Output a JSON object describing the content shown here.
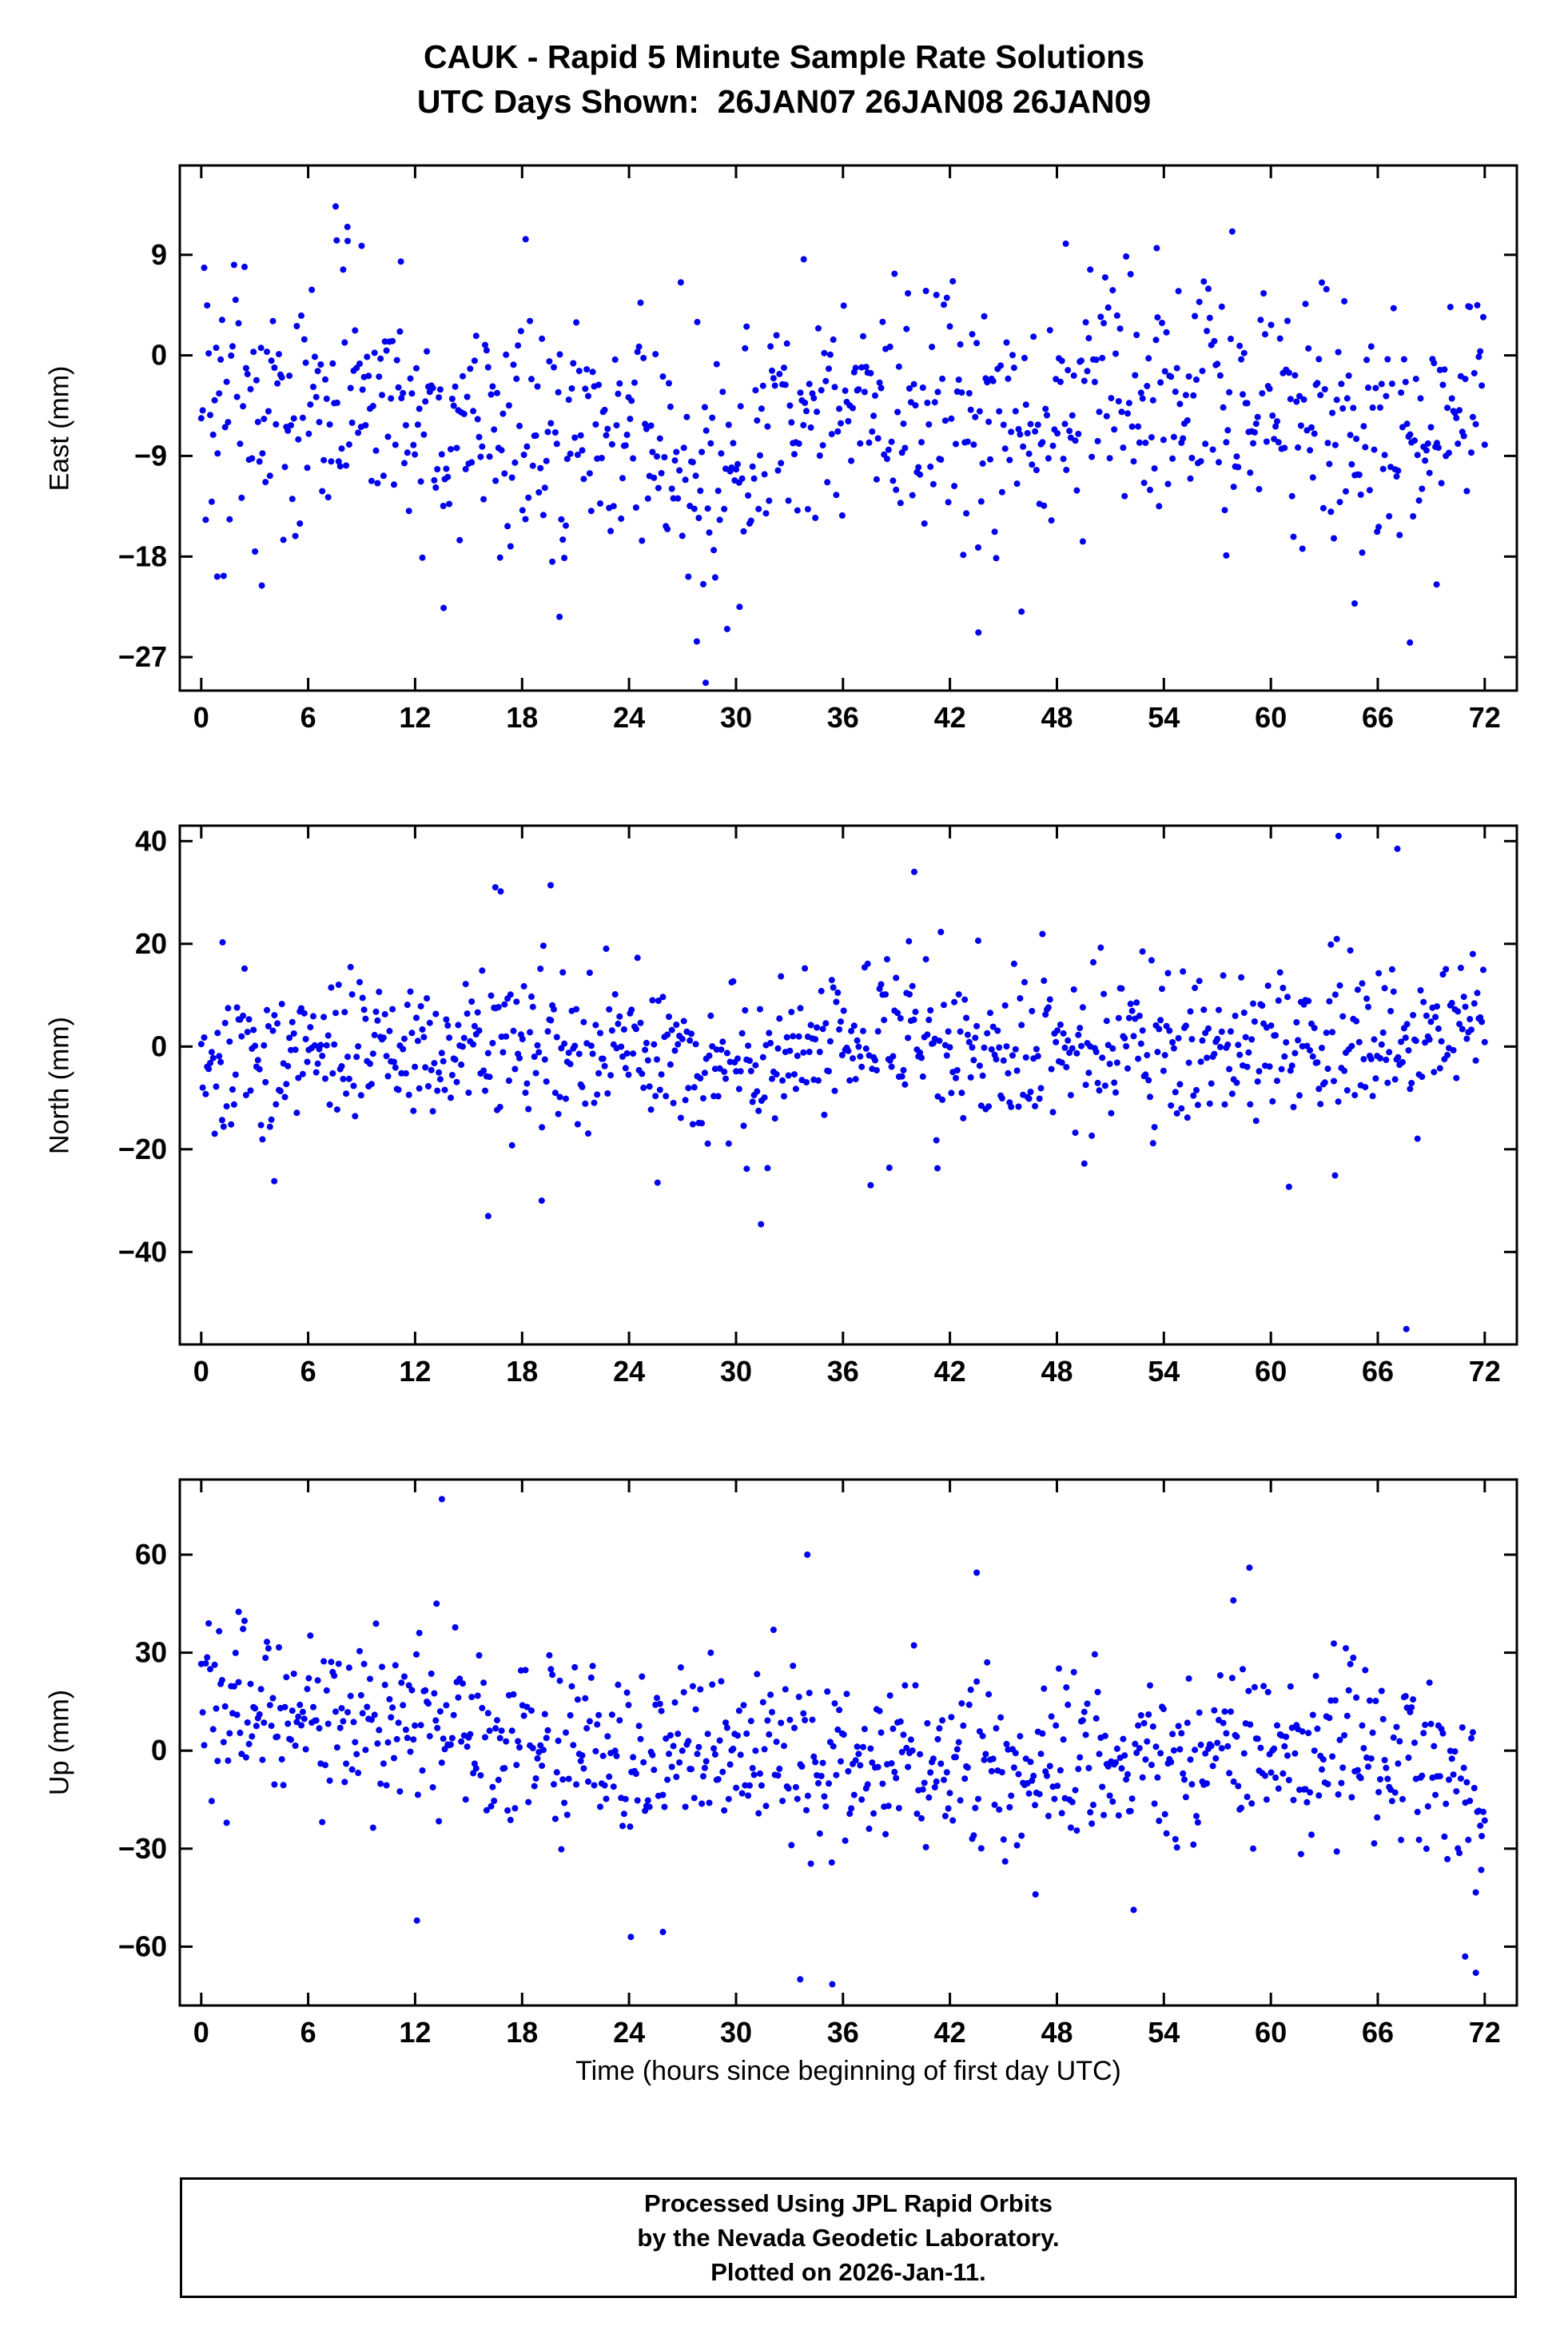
{
  "title": {
    "line1": "CAUK - Rapid 5 Minute Sample Rate Solutions",
    "line2": "UTC Days Shown:  26JAN07 26JAN08 26JAN09"
  },
  "footer": {
    "line1": "Processed Using JPL Rapid Orbits",
    "line2": "by the Nevada Geodetic Laboratory.",
    "line3": "Plotted on 2026-Jan-11."
  },
  "colors": {
    "point": "#0000ee",
    "axis": "#000000",
    "background": "#ffffff",
    "text": "#000000"
  },
  "chart_data": {
    "type": "scatter",
    "title": "CAUK - Rapid 5 Minute Sample Rate Solutions",
    "subtitle": "UTC Days Shown:  26JAN07 26JAN08 26JAN09",
    "station": "CAUK",
    "utc_days_shown": [
      "26JAN07",
      "26JAN08",
      "26JAN09"
    ],
    "sample_interval_minutes": 5,
    "x_axis": {
      "label": "Time (hours since beginning of first day UTC)",
      "min": -1.2,
      "max": 73.8,
      "ticks": [
        0,
        6,
        12,
        18,
        24,
        30,
        36,
        42,
        48,
        54,
        60,
        66,
        72
      ]
    },
    "panels": [
      {
        "name": "east",
        "ylabel": "East (mm)",
        "ylim": [
          -30,
          17
        ],
        "yticks": [
          9,
          0,
          -9,
          -18,
          -27
        ],
        "n_points": 860,
        "seed": 20070126,
        "sd": 5.3,
        "mean_anchors": [
          [
            0,
            -5
          ],
          [
            4,
            -6
          ],
          [
            8,
            -4
          ],
          [
            12,
            -6
          ],
          [
            16,
            -8
          ],
          [
            20,
            -7
          ],
          [
            24,
            -9
          ],
          [
            28,
            -12
          ],
          [
            31,
            -9
          ],
          [
            34,
            -6
          ],
          [
            38,
            -4
          ],
          [
            42,
            -5
          ],
          [
            46,
            -6
          ],
          [
            50,
            -4
          ],
          [
            54,
            -2
          ],
          [
            58,
            -4
          ],
          [
            62,
            -5
          ],
          [
            66,
            -8
          ],
          [
            69,
            -7
          ],
          [
            72,
            -3
          ]
        ],
        "outliers": [
          [
            8.2,
            11.5
          ],
          [
            7.6,
            10.3
          ],
          [
            9.0,
            9.8
          ],
          [
            18.2,
            10.4
          ],
          [
            48.5,
            10.0
          ],
          [
            53.6,
            9.6
          ],
          [
            11.2,
            8.4
          ],
          [
            33.8,
            8.6
          ],
          [
            28.3,
            -29.3
          ],
          [
            27.8,
            -25.6
          ],
          [
            30.2,
            -22.5
          ],
          [
            13.6,
            -22.6
          ],
          [
            20.1,
            -23.4
          ],
          [
            43.6,
            -24.8
          ],
          [
            67.8,
            -25.7
          ],
          [
            0.9,
            -19.8
          ],
          [
            3.4,
            -20.6
          ],
          [
            64.7,
            -22.2
          ],
          [
            57.5,
            -17.9
          ],
          [
            69.3,
            -20.5
          ]
        ]
      },
      {
        "name": "north",
        "ylabel": "North (mm)",
        "ylim": [
          -58,
          43
        ],
        "yticks": [
          40,
          20,
          0,
          -20,
          -40
        ],
        "n_points": 860,
        "seed": 20080126,
        "sd": 7.5,
        "mean_anchors": [
          [
            0,
            -3
          ],
          [
            4,
            -2
          ],
          [
            8,
            0
          ],
          [
            12,
            0
          ],
          [
            16,
            1
          ],
          [
            20,
            1
          ],
          [
            24,
            0
          ],
          [
            28,
            -2
          ],
          [
            32,
            -2
          ],
          [
            36,
            0
          ],
          [
            40,
            3
          ],
          [
            44,
            -2
          ],
          [
            48,
            0
          ],
          [
            52,
            0
          ],
          [
            56,
            -1
          ],
          [
            60,
            0
          ],
          [
            64,
            2
          ],
          [
            68,
            2
          ],
          [
            72,
            6
          ]
        ],
        "outliers": [
          [
            16.5,
            31.0
          ],
          [
            16.8,
            30.2
          ],
          [
            19.6,
            31.4
          ],
          [
            40.0,
            34.0
          ],
          [
            39.7,
            20.5
          ],
          [
            63.8,
            41.0
          ],
          [
            67.1,
            38.5
          ],
          [
            1.2,
            20.3
          ],
          [
            52.8,
            18.5
          ],
          [
            31.4,
            -34.6
          ],
          [
            16.1,
            -33.0
          ],
          [
            19.1,
            -30.0
          ],
          [
            4.1,
            -26.2
          ],
          [
            30.6,
            -23.8
          ],
          [
            38.6,
            -23.6
          ],
          [
            63.6,
            -25.1
          ],
          [
            67.6,
            -55.0
          ],
          [
            41.3,
            -23.7
          ],
          [
            25.6,
            -26.5
          ]
        ]
      },
      {
        "name": "up",
        "ylabel": "Up (mm)",
        "ylim": [
          -78,
          83
        ],
        "yticks": [
          60,
          30,
          0,
          -30,
          -60
        ],
        "n_points": 860,
        "seed": 20090126,
        "sd": 13.5,
        "mean_anchors": [
          [
            0,
            14
          ],
          [
            3,
            12
          ],
          [
            6,
            10
          ],
          [
            9,
            8
          ],
          [
            12,
            6
          ],
          [
            15,
            4
          ],
          [
            18,
            2
          ],
          [
            21,
            0
          ],
          [
            24,
            -3
          ],
          [
            27,
            -1
          ],
          [
            30,
            0
          ],
          [
            33,
            -2
          ],
          [
            36,
            -3
          ],
          [
            39,
            -4
          ],
          [
            42,
            -4
          ],
          [
            45,
            -2
          ],
          [
            48,
            -3
          ],
          [
            51,
            -3
          ],
          [
            54,
            -2
          ],
          [
            57,
            0
          ],
          [
            60,
            2
          ],
          [
            63,
            3
          ],
          [
            66,
            0
          ],
          [
            69,
            -6
          ],
          [
            72,
            -14
          ]
        ],
        "outliers": [
          [
            13.5,
            77.0
          ],
          [
            34.0,
            60.0
          ],
          [
            58.8,
            56.0
          ],
          [
            43.5,
            54.5
          ],
          [
            57.9,
            46.0
          ],
          [
            13.2,
            45.0
          ],
          [
            2.1,
            42.5
          ],
          [
            24.1,
            -57.0
          ],
          [
            33.6,
            -70.0
          ],
          [
            35.4,
            -71.5
          ],
          [
            71.5,
            -68.0
          ],
          [
            70.9,
            -63.0
          ],
          [
            12.1,
            -52.0
          ],
          [
            25.9,
            -55.5
          ],
          [
            46.8,
            -44.0
          ],
          [
            71.8,
            -36.5
          ]
        ]
      }
    ]
  }
}
